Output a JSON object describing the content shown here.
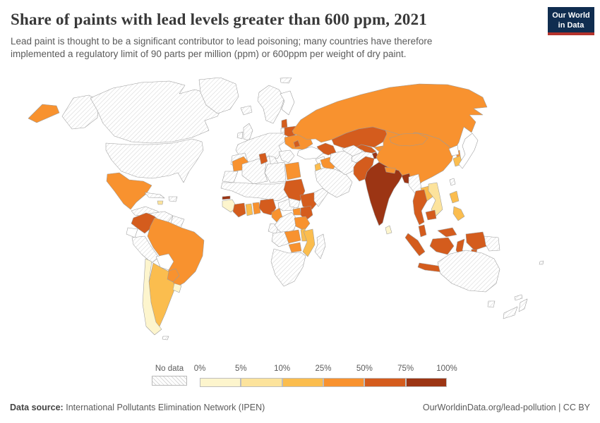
{
  "header": {
    "title": "Share of paints with lead levels greater than 600 ppm, 2021",
    "subtitle_line1": "Lead paint is thought to be a significant contributor to lead poisoning; many countries have therefore",
    "subtitle_line2": "implemented a regulatory limit of 90 parts per million (ppm) or 600ppm per weight of dry paint.",
    "logo": {
      "line1": "Our World",
      "line2": "in Data",
      "bg_color": "#102d50",
      "stripe_color": "#b5332c"
    }
  },
  "legend": {
    "no_data_label": "No data",
    "tick_labels": [
      "0%",
      "5%",
      "10%",
      "25%",
      "50%",
      "75%",
      "100%"
    ],
    "colors": [
      "#fdf5cd",
      "#fce39c",
      "#fbbd4e",
      "#f8922f",
      "#d45c1d",
      "#9c3514"
    ]
  },
  "map": {
    "white_fill": "#ffffff",
    "country_values": {
      "alaska": "no-data",
      "canada": "no-data",
      "usa": "no-data",
      "greenland": "no-data",
      "iceland": "no-data",
      "uk": "no-data",
      "ireland": "no-data",
      "norway-sweden": "no-data",
      "finland": "none",
      "svalbard": "no-data",
      "lithuania": "no-data",
      "europe-main": "no-data",
      "iberia": "no-data",
      "italy": "no-data",
      "balkans": "no-data",
      "central-america": "no-data",
      "cuba": "no-data",
      "hispaniola": "no-data",
      "venezuela": "no-data",
      "guyanas": "no-data",
      "peru": "no-data",
      "falklands": "no-data",
      "western-sahara": "no-data",
      "algeria": "no-data",
      "libya": "no-data",
      "sahel": "no-data",
      "car": "no-data",
      "south-sudan": "no-data",
      "gabon-congo": "no-data",
      "drc": "no-data",
      "somalia": "no-data",
      "angola": "no-data",
      "southern-africa": "no-data",
      "madagascar": "no-data",
      "saudi-arabia": "no-data",
      "iran": "no-data",
      "afghanistan": "no-data",
      "turkmenistan": "no-data",
      "myanmar": "no-data",
      "taiwan": "no-data",
      "png": "no-data",
      "australia": "no-data",
      "tasmania": "no-data",
      "new-zealand": "no-data",
      "new-caledonia": "no-data",
      "fiji": "no-data",
      "turkey": "none",
      "syria": "none",
      "bolivia": "none",
      "ecuador": "none",
      "japan": "none",
      "north-korea": "none",
      "chile": 0,
      "uruguay": 0,
      "sri-lanka": 0,
      "guinea": 0,
      "vietnam": 1,
      "jamaica": 1,
      "argentina": 2,
      "malawi": 2,
      "mozambique": 2,
      "jordan": 2,
      "laos": 2,
      "philippines": 2,
      "south-korea": 2,
      "ghana": 2,
      "mexico": 3,
      "brazil": 3,
      "paraguay": 3,
      "russia": 3,
      "ukraine": 3,
      "china": 3,
      "mongolia": 3,
      "morocco": 3,
      "egypt": 3,
      "iraq": 3,
      "cameroon": 3,
      "tanzania": 3,
      "zambia": 3,
      "zimbabwe": 3,
      "uganda": 3,
      "togo-benin": 3,
      "nepal": 3,
      "kyrgyzstan": 3,
      "colombia": 4,
      "belarus": 4,
      "estonia-latvia": 4,
      "moldova": 4,
      "caucasus": 4,
      "tunisia": 4,
      "sudan": 4,
      "ethiopia": 4,
      "kenya": 4,
      "nigeria": 4,
      "cote-divoire": 4,
      "kazakhstan": 4,
      "uzbekistan": 4,
      "pakistan": 4,
      "thailand": 4,
      "cambodia": 4,
      "malaysia": 4,
      "indonesia": 4,
      "papua-indonesia": 4,
      "india": 5,
      "bangladesh": 5,
      "tajikistan": 5,
      "gambia": 5
    }
  },
  "footer": {
    "source_label": "Data source:",
    "source_text": "International Pollutants Elimination Network (IPEN)",
    "right_text": "OurWorldinData.org/lead-pollution | CC BY"
  }
}
